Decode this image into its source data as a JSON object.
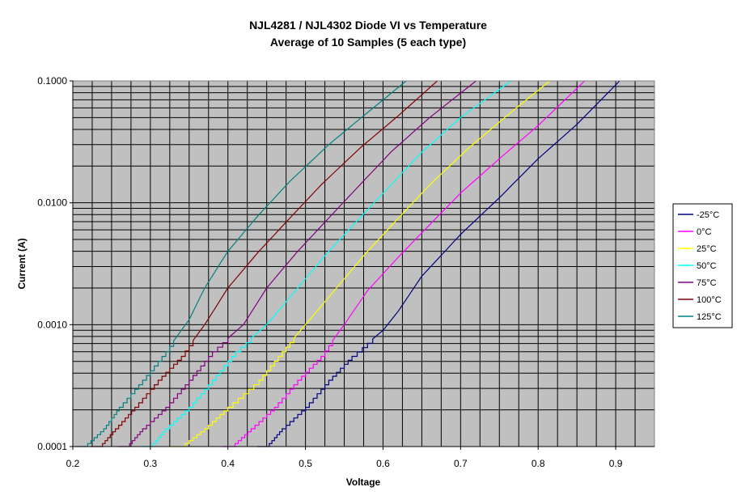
{
  "chart_data": {
    "type": "line",
    "title": "NJL4281 /  NJL4302 Diode VI vs Temperature",
    "subtitle": "Average of 10 Samples (5 each type)",
    "xlabel": "Voltage",
    "ylabel": "Current (A)",
    "xlim": [
      0.2,
      0.95
    ],
    "ylim": [
      0.0001,
      0.1
    ],
    "yscale": "log",
    "xticks": [
      "0.2",
      "0.3",
      "0.4",
      "0.5",
      "0.6",
      "0.7",
      "0.8",
      "0.9"
    ],
    "yticks": [
      "0.0001",
      "0.0010",
      "0.0100",
      "0.1000"
    ],
    "grid": true,
    "plot_background": "#c0c0c0",
    "legend_position": "right",
    "series": [
      {
        "name": "-25°C",
        "color": "#000080",
        "points": [
          [
            0.45,
            0.0001
          ],
          [
            0.47,
            0.00014
          ],
          [
            0.5,
            0.00021
          ],
          [
            0.53,
            0.00035
          ],
          [
            0.56,
            0.00055
          ],
          [
            0.6,
            0.0009
          ],
          [
            0.62,
            0.0013
          ],
          [
            0.65,
            0.0025
          ],
          [
            0.7,
            0.0055
          ],
          [
            0.75,
            0.011
          ],
          [
            0.8,
            0.023
          ],
          [
            0.85,
            0.044
          ],
          [
            0.905,
            0.1
          ]
        ]
      },
      {
        "name": "0°C",
        "color": "#ff00ff",
        "points": [
          [
            0.405,
            0.0001
          ],
          [
            0.43,
            0.00014
          ],
          [
            0.46,
            0.00021
          ],
          [
            0.49,
            0.00035
          ],
          [
            0.52,
            0.00055
          ],
          [
            0.55,
            0.001
          ],
          [
            0.58,
            0.0019
          ],
          [
            0.62,
            0.0036
          ],
          [
            0.66,
            0.0066
          ],
          [
            0.7,
            0.012
          ],
          [
            0.75,
            0.023
          ],
          [
            0.8,
            0.043
          ],
          [
            0.86,
            0.1
          ]
        ]
      },
      {
        "name": "25°C",
        "color": "#ffff00",
        "points": [
          [
            0.34,
            0.0001
          ],
          [
            0.37,
            0.00014
          ],
          [
            0.4,
            0.00021
          ],
          [
            0.44,
            0.00035
          ],
          [
            0.47,
            0.0006
          ],
          [
            0.5,
            0.001
          ],
          [
            0.54,
            0.002
          ],
          [
            0.58,
            0.004
          ],
          [
            0.62,
            0.0075
          ],
          [
            0.66,
            0.014
          ],
          [
            0.71,
            0.028
          ],
          [
            0.76,
            0.052
          ],
          [
            0.815,
            0.1
          ]
        ]
      },
      {
        "name": "50°C",
        "color": "#00ffff",
        "points": [
          [
            0.3,
            0.0001
          ],
          [
            0.32,
            0.00014
          ],
          [
            0.35,
            0.00021
          ],
          [
            0.38,
            0.00035
          ],
          [
            0.41,
            0.0006
          ],
          [
            0.45,
            0.001
          ],
          [
            0.49,
            0.002
          ],
          [
            0.53,
            0.004
          ],
          [
            0.57,
            0.0075
          ],
          [
            0.61,
            0.014
          ],
          [
            0.65,
            0.026
          ],
          [
            0.7,
            0.05
          ],
          [
            0.765,
            0.1
          ]
        ]
      },
      {
        "name": "75°C",
        "color": "#800080",
        "points": [
          [
            0.27,
            0.0001
          ],
          [
            0.29,
            0.00014
          ],
          [
            0.32,
            0.00021
          ],
          [
            0.35,
            0.00035
          ],
          [
            0.38,
            0.0006
          ],
          [
            0.42,
            0.001
          ],
          [
            0.45,
            0.002
          ],
          [
            0.49,
            0.004
          ],
          [
            0.53,
            0.0075
          ],
          [
            0.57,
            0.014
          ],
          [
            0.61,
            0.026
          ],
          [
            0.66,
            0.05
          ],
          [
            0.72,
            0.1
          ]
        ]
      },
      {
        "name": "100°C",
        "color": "#800000",
        "points": [
          [
            0.235,
            0.0001
          ],
          [
            0.255,
            0.00014
          ],
          [
            0.28,
            0.00021
          ],
          [
            0.31,
            0.00035
          ],
          [
            0.34,
            0.00055
          ],
          [
            0.37,
            0.001
          ],
          [
            0.4,
            0.002
          ],
          [
            0.44,
            0.004
          ],
          [
            0.48,
            0.0075
          ],
          [
            0.52,
            0.014
          ],
          [
            0.57,
            0.028
          ],
          [
            0.62,
            0.052
          ],
          [
            0.67,
            0.1
          ]
        ]
      },
      {
        "name": "125°C",
        "color": "#008080",
        "points": [
          [
            0.215,
            0.0001
          ],
          [
            0.24,
            0.00014
          ],
          [
            0.26,
            0.00021
          ],
          [
            0.29,
            0.00035
          ],
          [
            0.32,
            0.0006
          ],
          [
            0.35,
            0.0011
          ],
          [
            0.37,
            0.002
          ],
          [
            0.4,
            0.004
          ],
          [
            0.44,
            0.008
          ],
          [
            0.48,
            0.015
          ],
          [
            0.53,
            0.03
          ],
          [
            0.58,
            0.055
          ],
          [
            0.63,
            0.1
          ]
        ]
      }
    ]
  }
}
